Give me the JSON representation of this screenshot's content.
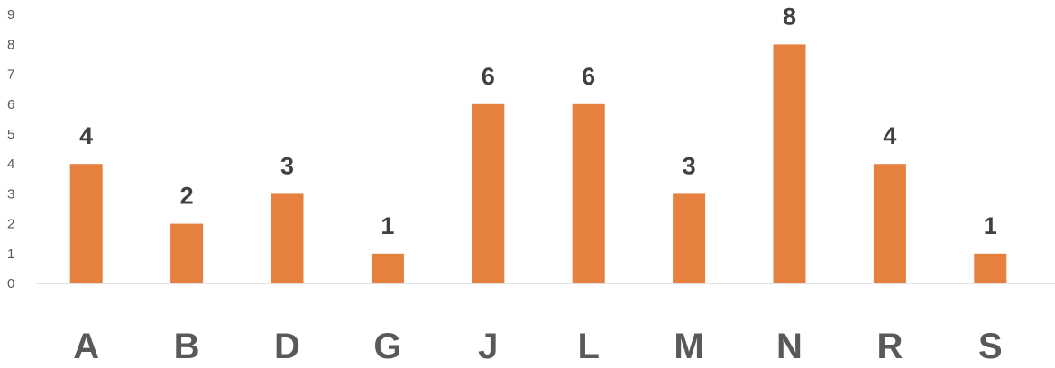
{
  "chart_data": {
    "type": "bar",
    "title": "",
    "xlabel": "",
    "ylabel": "",
    "categories": [
      "A",
      "B",
      "D",
      "G",
      "J",
      "L",
      "M",
      "N",
      "R",
      "S"
    ],
    "values": [
      4,
      2,
      3,
      1,
      6,
      6,
      3,
      8,
      4,
      1
    ],
    "ylim": [
      0,
      9
    ],
    "y_ticks": [
      0,
      1,
      2,
      3,
      4,
      5,
      6,
      7,
      8,
      9
    ],
    "grid": false,
    "legend": "none",
    "data_labels": true,
    "bar_color": "#E6803F",
    "axis_color": "#D9D9D9",
    "tick_label_color": "#595959",
    "data_label_color": "#404040"
  }
}
